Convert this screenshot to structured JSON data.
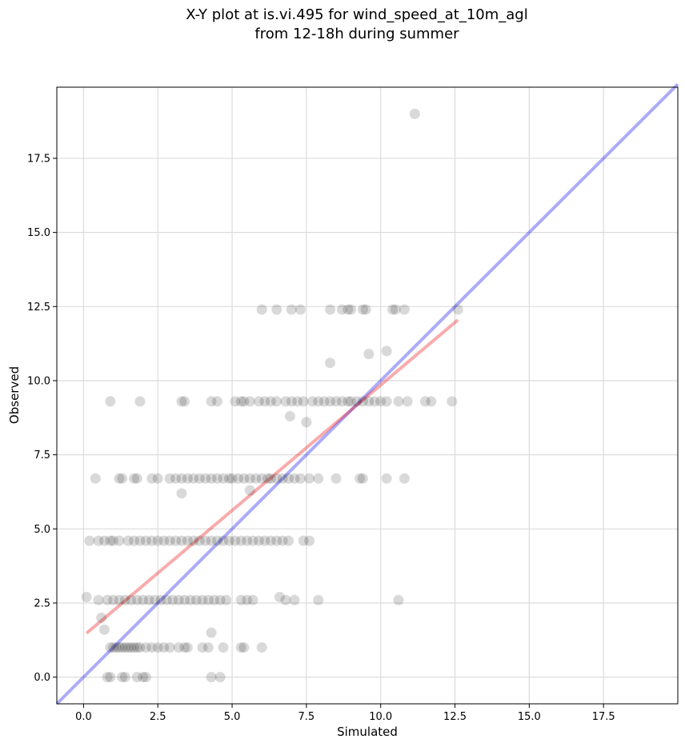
{
  "chart_data": {
    "type": "scatter",
    "title_lines": [
      "X-Y plot at is.vi.495 for wind_speed_at_10m_agl",
      "from 12-18h during summer"
    ],
    "xlabel": "Simulated",
    "ylabel": "Observed",
    "xlim": [
      -0.9,
      20.0
    ],
    "ylim": [
      -0.9,
      19.9
    ],
    "xticks": [
      0.0,
      2.5,
      5.0,
      7.5,
      10.0,
      12.5,
      15.0,
      17.5
    ],
    "yticks": [
      0.0,
      2.5,
      5.0,
      7.5,
      10.0,
      12.5,
      15.0,
      17.5
    ],
    "xtick_labels": [
      "0.0",
      "2.5",
      "5.0",
      "7.5",
      "10.0",
      "12.5",
      "15.0",
      "17.5"
    ],
    "ytick_labels": [
      "0.0",
      "2.5",
      "5.0",
      "7.5",
      "10.0",
      "12.5",
      "15.0",
      "17.5"
    ],
    "grid": true,
    "point_color": "#000000",
    "point_alpha": 0.15,
    "lines": [
      {
        "role": "one-to-one reference",
        "color": "#0000ee",
        "alpha": 0.33,
        "x": [
          -0.9,
          20.0
        ],
        "y": [
          -0.9,
          20.0
        ]
      },
      {
        "role": "linear fit",
        "color": "#ee0000",
        "alpha": 0.33,
        "x": [
          0.1,
          12.6
        ],
        "y": [
          1.48,
          12.05
        ]
      }
    ],
    "points": [
      [
        11.15,
        19.0
      ],
      [
        6.0,
        12.4
      ],
      [
        6.5,
        12.4
      ],
      [
        7.0,
        12.4
      ],
      [
        7.3,
        12.4
      ],
      [
        8.3,
        12.4
      ],
      [
        8.7,
        12.4
      ],
      [
        8.9,
        12.4
      ],
      [
        9.0,
        12.4
      ],
      [
        9.4,
        12.4
      ],
      [
        9.5,
        12.4
      ],
      [
        10.4,
        12.4
      ],
      [
        10.5,
        12.4
      ],
      [
        10.8,
        12.4
      ],
      [
        12.6,
        12.4
      ],
      [
        10.2,
        11.0
      ],
      [
        9.6,
        10.9
      ],
      [
        8.3,
        10.6
      ],
      [
        0.9,
        9.3
      ],
      [
        1.9,
        9.3
      ],
      [
        3.3,
        9.3
      ],
      [
        3.4,
        9.3
      ],
      [
        4.3,
        9.3
      ],
      [
        4.5,
        9.3
      ],
      [
        5.1,
        9.3
      ],
      [
        5.3,
        9.3
      ],
      [
        5.4,
        9.3
      ],
      [
        5.6,
        9.3
      ],
      [
        5.9,
        9.3
      ],
      [
        6.1,
        9.3
      ],
      [
        6.3,
        9.3
      ],
      [
        6.5,
        9.3
      ],
      [
        6.8,
        9.3
      ],
      [
        7.0,
        9.3
      ],
      [
        7.2,
        9.3
      ],
      [
        7.4,
        9.3
      ],
      [
        7.7,
        9.3
      ],
      [
        7.9,
        9.3
      ],
      [
        8.1,
        9.3
      ],
      [
        8.3,
        9.3
      ],
      [
        8.5,
        9.3
      ],
      [
        8.7,
        9.3
      ],
      [
        8.9,
        9.3
      ],
      [
        9.0,
        9.3
      ],
      [
        9.2,
        9.3
      ],
      [
        9.4,
        9.3
      ],
      [
        9.6,
        9.3
      ],
      [
        9.8,
        9.3
      ],
      [
        10.0,
        9.3
      ],
      [
        10.2,
        9.3
      ],
      [
        10.6,
        9.3
      ],
      [
        10.9,
        9.3
      ],
      [
        11.5,
        9.3
      ],
      [
        11.7,
        9.3
      ],
      [
        12.4,
        9.3
      ],
      [
        6.95,
        8.8
      ],
      [
        7.5,
        8.6
      ],
      [
        0.4,
        6.7
      ],
      [
        1.2,
        6.7
      ],
      [
        1.3,
        6.7
      ],
      [
        1.7,
        6.7
      ],
      [
        1.8,
        6.7
      ],
      [
        2.3,
        6.7
      ],
      [
        2.5,
        6.7
      ],
      [
        2.9,
        6.7
      ],
      [
        3.1,
        6.7
      ],
      [
        3.3,
        6.7
      ],
      [
        3.5,
        6.7
      ],
      [
        3.7,
        6.7
      ],
      [
        3.9,
        6.7
      ],
      [
        4.1,
        6.7
      ],
      [
        4.3,
        6.7
      ],
      [
        4.5,
        6.7
      ],
      [
        4.7,
        6.7
      ],
      [
        4.9,
        6.7
      ],
      [
        5.0,
        6.7
      ],
      [
        5.2,
        6.7
      ],
      [
        5.4,
        6.7
      ],
      [
        5.6,
        6.7
      ],
      [
        5.8,
        6.7
      ],
      [
        6.0,
        6.7
      ],
      [
        6.2,
        6.7
      ],
      [
        6.3,
        6.7
      ],
      [
        6.5,
        6.7
      ],
      [
        6.7,
        6.7
      ],
      [
        6.9,
        6.7
      ],
      [
        7.1,
        6.7
      ],
      [
        7.3,
        6.7
      ],
      [
        7.6,
        6.7
      ],
      [
        7.9,
        6.7
      ],
      [
        8.5,
        6.7
      ],
      [
        9.3,
        6.7
      ],
      [
        9.4,
        6.7
      ],
      [
        10.2,
        6.7
      ],
      [
        10.8,
        6.7
      ],
      [
        5.6,
        6.3
      ],
      [
        3.3,
        6.2
      ],
      [
        0.2,
        4.6
      ],
      [
        0.5,
        4.6
      ],
      [
        0.7,
        4.6
      ],
      [
        0.9,
        4.6
      ],
      [
        1.0,
        4.6
      ],
      [
        1.2,
        4.6
      ],
      [
        1.5,
        4.6
      ],
      [
        1.7,
        4.6
      ],
      [
        1.9,
        4.6
      ],
      [
        2.1,
        4.6
      ],
      [
        2.3,
        4.6
      ],
      [
        2.5,
        4.6
      ],
      [
        2.7,
        4.6
      ],
      [
        2.9,
        4.6
      ],
      [
        3.1,
        4.6
      ],
      [
        3.3,
        4.6
      ],
      [
        3.5,
        4.6
      ],
      [
        3.7,
        4.6
      ],
      [
        3.9,
        4.6
      ],
      [
        4.1,
        4.6
      ],
      [
        4.3,
        4.6
      ],
      [
        4.5,
        4.6
      ],
      [
        4.7,
        4.6
      ],
      [
        4.9,
        4.6
      ],
      [
        5.1,
        4.6
      ],
      [
        5.3,
        4.6
      ],
      [
        5.5,
        4.6
      ],
      [
        5.7,
        4.6
      ],
      [
        5.9,
        4.6
      ],
      [
        6.1,
        4.6
      ],
      [
        6.3,
        4.6
      ],
      [
        6.5,
        4.6
      ],
      [
        6.7,
        4.6
      ],
      [
        6.9,
        4.6
      ],
      [
        7.4,
        4.6
      ],
      [
        7.6,
        4.6
      ],
      [
        0.1,
        2.7
      ],
      [
        6.6,
        2.7
      ],
      [
        0.5,
        2.6
      ],
      [
        0.8,
        2.6
      ],
      [
        1.0,
        2.6
      ],
      [
        1.2,
        2.6
      ],
      [
        1.4,
        2.6
      ],
      [
        1.6,
        2.6
      ],
      [
        1.8,
        2.6
      ],
      [
        2.0,
        2.6
      ],
      [
        2.2,
        2.6
      ],
      [
        2.4,
        2.6
      ],
      [
        2.6,
        2.6
      ],
      [
        2.8,
        2.6
      ],
      [
        3.0,
        2.6
      ],
      [
        3.2,
        2.6
      ],
      [
        3.4,
        2.6
      ],
      [
        3.6,
        2.6
      ],
      [
        3.8,
        2.6
      ],
      [
        4.0,
        2.6
      ],
      [
        4.2,
        2.6
      ],
      [
        4.4,
        2.6
      ],
      [
        4.6,
        2.6
      ],
      [
        4.8,
        2.6
      ],
      [
        5.3,
        2.6
      ],
      [
        5.5,
        2.6
      ],
      [
        5.7,
        2.6
      ],
      [
        6.8,
        2.6
      ],
      [
        7.1,
        2.6
      ],
      [
        7.9,
        2.6
      ],
      [
        10.6,
        2.6
      ],
      [
        0.6,
        2.0
      ],
      [
        0.7,
        1.6
      ],
      [
        4.3,
        1.5
      ],
      [
        0.9,
        1.0
      ],
      [
        1.0,
        1.0
      ],
      [
        1.1,
        1.0
      ],
      [
        1.2,
        1.0
      ],
      [
        1.3,
        1.0
      ],
      [
        1.4,
        1.0
      ],
      [
        1.5,
        1.0
      ],
      [
        1.6,
        1.0
      ],
      [
        1.7,
        1.0
      ],
      [
        1.8,
        1.0
      ],
      [
        1.9,
        1.0
      ],
      [
        2.1,
        1.0
      ],
      [
        2.3,
        1.0
      ],
      [
        2.5,
        1.0
      ],
      [
        2.7,
        1.0
      ],
      [
        2.9,
        1.0
      ],
      [
        3.2,
        1.0
      ],
      [
        3.4,
        1.0
      ],
      [
        3.5,
        1.0
      ],
      [
        4.0,
        1.0
      ],
      [
        4.2,
        1.0
      ],
      [
        4.7,
        1.0
      ],
      [
        5.3,
        1.0
      ],
      [
        5.4,
        1.0
      ],
      [
        6.0,
        1.0
      ],
      [
        0.8,
        0.0
      ],
      [
        0.9,
        0.0
      ],
      [
        1.3,
        0.0
      ],
      [
        1.4,
        0.0
      ],
      [
        1.8,
        0.0
      ],
      [
        2.0,
        0.0
      ],
      [
        2.1,
        0.0
      ],
      [
        4.3,
        0.0
      ],
      [
        4.6,
        0.0
      ]
    ]
  }
}
